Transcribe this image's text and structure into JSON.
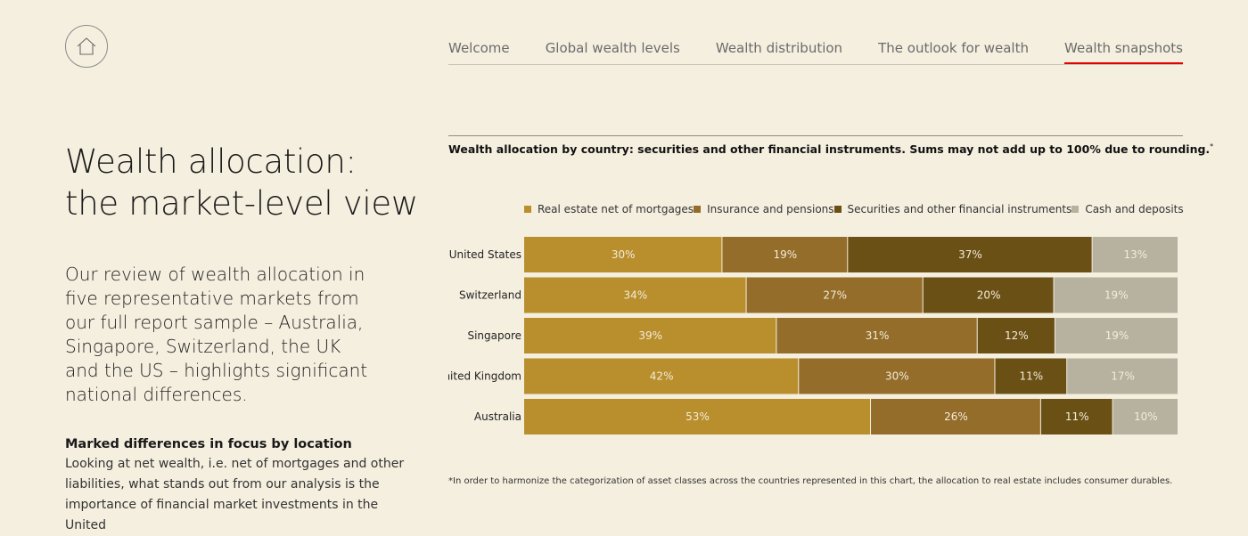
{
  "nav": {
    "items": [
      "Welcome",
      "Global wealth levels",
      "Wealth distribution",
      "The outlook for wealth",
      "Wealth snapshots"
    ],
    "active": "Wealth snapshots"
  },
  "icons": {
    "home": "home-icon"
  },
  "page": {
    "title_line1": "Wealth allocation:",
    "title_line2": "the market-level view",
    "intro": "Our review of wealth allocation in five representative markets from our full report sample – Australia, Singapore, Switzerland, the UK and the US – highlights significant national differences.",
    "subhead": "Marked differences in focus by location",
    "body": "Looking at net wealth, i.e. net of mortgages and other liabilities, what stands out from our analysis is the importance of financial market investments in the United"
  },
  "chart_data": {
    "type": "bar",
    "orientation": "horizontal",
    "stacked": true,
    "title": "Wealth allocation by country: securities and other financial instruments. Sums may not add up to 100% due to rounding.",
    "title_marker": "*",
    "legend_position": "top",
    "categories": [
      "United States",
      "Switzerland",
      "Singapore",
      "United Kingdom",
      "Australia"
    ],
    "series": [
      {
        "name": "Real estate net of mortgages",
        "color": "#b98e2d",
        "values": [
          30,
          34,
          39,
          42,
          53
        ],
        "labels": [
          "30%",
          "34%",
          "39%",
          "42%",
          "53%"
        ]
      },
      {
        "name": "Insurance and pensions",
        "color": "#946d2a",
        "values": [
          19,
          27,
          31,
          30,
          26
        ],
        "labels": [
          "19%",
          "27%",
          "31%",
          "30%",
          "26%"
        ]
      },
      {
        "name": "Securities and other financial instruments",
        "color": "#6b5016",
        "values": [
          37,
          20,
          12,
          11,
          11
        ],
        "labels": [
          "37%",
          "20%",
          "12%",
          "11%",
          "11%"
        ]
      },
      {
        "name": "Cash and deposits",
        "color": "#b7b19f",
        "values": [
          13,
          19,
          19,
          17,
          10
        ],
        "labels": [
          "13%",
          "19%",
          "19%",
          "17%",
          "10%"
        ]
      }
    ],
    "footnote": "*In order to harmonize the categorization of asset classes across the countries represented in this chart, the allocation to real estate includes consumer durables."
  }
}
